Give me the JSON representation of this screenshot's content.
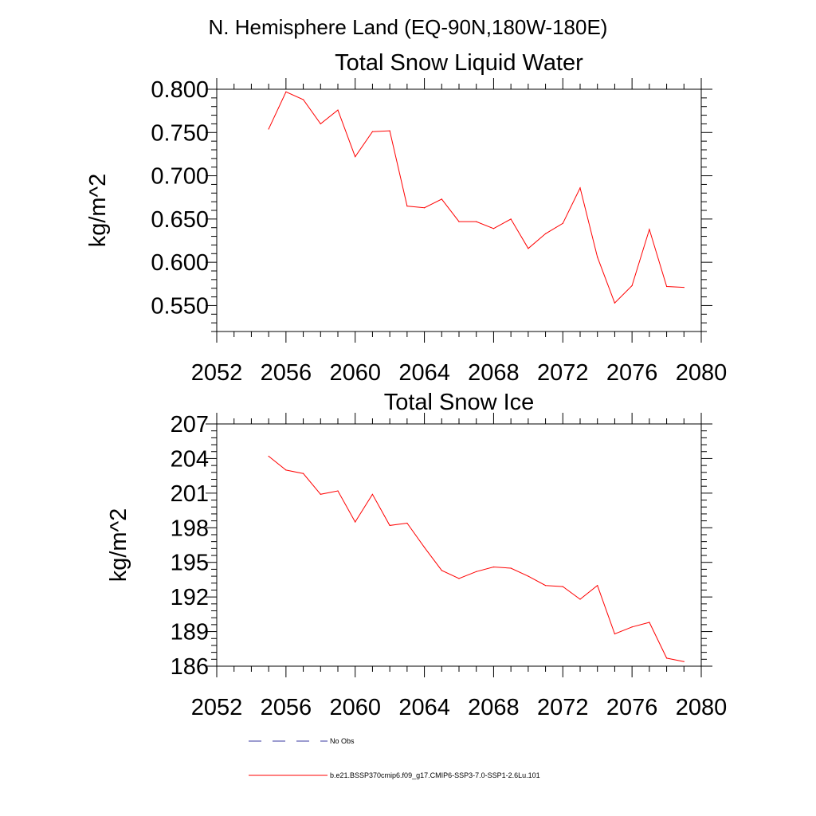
{
  "figure": {
    "title": "N. Hemisphere Land (EQ-90N,180W-180E)"
  },
  "chart_data": [
    {
      "type": "line",
      "title": "Total Snow Liquid Water",
      "xlabel": "",
      "ylabel": "kg/m^2",
      "xlim": [
        2052,
        2080
      ],
      "ylim": [
        0.52,
        0.8
      ],
      "xticks": [
        "2052",
        "2056",
        "2060",
        "2064",
        "2068",
        "2072",
        "2076",
        "2080"
      ],
      "yticks": [
        "0.550",
        "0.600",
        "0.650",
        "0.700",
        "0.750",
        "0.800"
      ],
      "series": [
        {
          "color": "#ff0000",
          "x": [
            2055,
            2056,
            2057,
            2058,
            2059,
            2060,
            2061,
            2062,
            2063,
            2064,
            2065,
            2066,
            2067,
            2068,
            2069,
            2070,
            2071,
            2072,
            2073,
            2074,
            2075,
            2076,
            2077,
            2078,
            2079
          ],
          "y": [
            0.754,
            0.797,
            0.788,
            0.76,
            0.776,
            0.722,
            0.751,
            0.752,
            0.665,
            0.663,
            0.673,
            0.647,
            0.647,
            0.639,
            0.65,
            0.616,
            0.633,
            0.645,
            0.686,
            0.606,
            0.553,
            0.573,
            0.638,
            0.572,
            0.571
          ]
        }
      ]
    },
    {
      "type": "line",
      "title": "Total Snow Ice",
      "xlabel": "",
      "ylabel": "kg/m^2",
      "xlim": [
        2052,
        2080
      ],
      "ylim": [
        186,
        207
      ],
      "xticks": [
        "2052",
        "2056",
        "2060",
        "2064",
        "2068",
        "2072",
        "2076",
        "2080"
      ],
      "yticks": [
        "186",
        "189",
        "192",
        "195",
        "198",
        "201",
        "204",
        "207"
      ],
      "series": [
        {
          "color": "#ff0000",
          "x": [
            2055,
            2056,
            2057,
            2058,
            2059,
            2060,
            2061,
            2062,
            2063,
            2064,
            2065,
            2066,
            2067,
            2068,
            2069,
            2070,
            2071,
            2072,
            2073,
            2074,
            2075,
            2076,
            2077,
            2078,
            2079
          ],
          "y": [
            204.2,
            203.0,
            202.7,
            200.9,
            201.2,
            198.5,
            200.9,
            198.2,
            198.4,
            196.3,
            194.3,
            193.6,
            194.2,
            194.6,
            194.5,
            193.8,
            193.0,
            192.9,
            191.8,
            193.0,
            188.8,
            189.4,
            189.8,
            186.7,
            186.4
          ]
        }
      ]
    }
  ],
  "legend": {
    "items": [
      {
        "label": "No Obs",
        "color": "#3a3aa0",
        "dash": true
      },
      {
        "label": "b.e21.BSSP370cmip6.f09_g17.CMIP6-SSP3-7.0-SSP1-2.6Lu.101",
        "color": "#ff0000",
        "dash": false
      }
    ]
  }
}
